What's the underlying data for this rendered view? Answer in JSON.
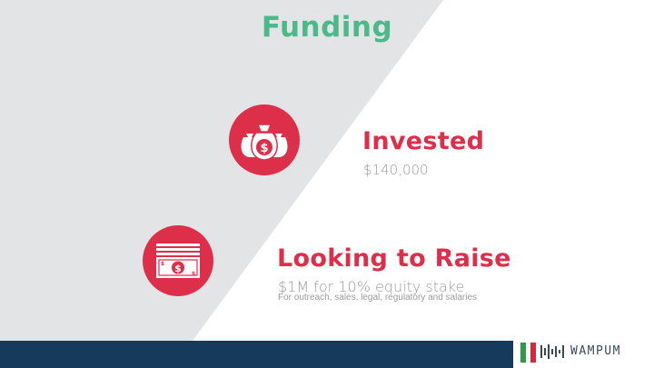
{
  "slide": {
    "title": "Funding"
  },
  "sections": {
    "invested": {
      "heading": "Invested",
      "value": "$140,000",
      "icon": "money-bags-icon"
    },
    "raise": {
      "heading": "Looking to Raise",
      "value": "$1M for 10% equity stake",
      "detail": "For outreach, sales, legal, regulatory and salaries",
      "icon": "cash-stack-icon"
    }
  },
  "brand": {
    "name": "WAMPUM"
  },
  "colors": {
    "title": "#4cb98a",
    "accent": "#dd2e4a",
    "gray_panel": "#e3e4e5",
    "footer_navy": "#163a5c",
    "flag_green": "#2e9a4a",
    "flag_white": "#ffffff",
    "flag_red": "#d7263d",
    "logo": "#3a4a5a"
  }
}
